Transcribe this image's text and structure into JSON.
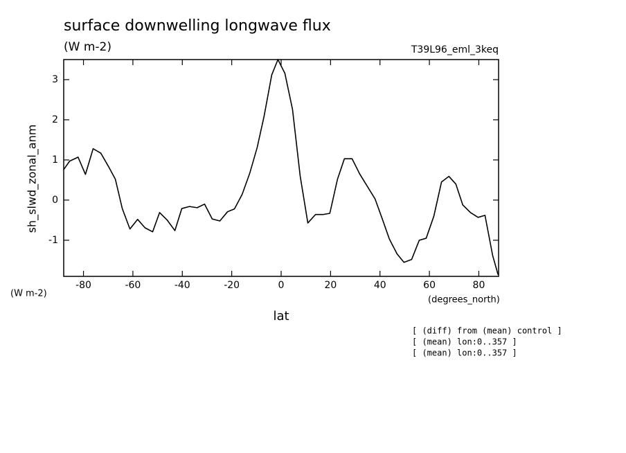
{
  "chart_data": {
    "type": "line",
    "title": "surface downwelling longwave flux",
    "subtitle": "(W m-2)",
    "dataset": "T39L96_eml_3keq",
    "y_label": "sh_slwd_zonal_anm",
    "y_units": "(W m-2)",
    "x_label": "lat",
    "x_units": "(degrees_north)",
    "notes": [
      "[ (diff) from (mean) control ]",
      "[ (mean) lon:0..357 ]",
      "[ (mean) lon:0..357 ]"
    ],
    "x": [
      -88.0,
      -85.6,
      -82.2,
      -79.2,
      -76.1,
      -73.0,
      -69.9,
      -67.1,
      -64.3,
      -61.2,
      -58.1,
      -55.1,
      -52.0,
      -49.2,
      -46.1,
      -43.0,
      -40.2,
      -37.1,
      -34.0,
      -31.0,
      -27.9,
      -24.8,
      -21.7,
      -18.9,
      -15.8,
      -12.7,
      -9.7,
      -6.9,
      -3.8,
      -1.3,
      1.5,
      4.6,
      7.7,
      10.8,
      13.9,
      16.9,
      19.7,
      22.8,
      25.6,
      28.7,
      31.8,
      34.9,
      38.0,
      41.0,
      43.8,
      46.9,
      49.7,
      52.8,
      55.9,
      58.7,
      61.8,
      64.9,
      67.9,
      70.7,
      73.5,
      76.6,
      79.7,
      82.5,
      85.6,
      87.8
    ],
    "series": [
      {
        "name": "sh_slwd_zonal_anm",
        "color": "#000000",
        "values": [
          0.76,
          0.97,
          1.07,
          0.64,
          1.28,
          1.17,
          0.84,
          0.52,
          -0.21,
          -0.72,
          -0.48,
          -0.69,
          -0.79,
          -0.31,
          -0.5,
          -0.76,
          -0.21,
          -0.16,
          -0.19,
          -0.1,
          -0.47,
          -0.52,
          -0.29,
          -0.22,
          0.14,
          0.67,
          1.31,
          2.09,
          3.12,
          3.5,
          3.16,
          2.26,
          0.6,
          -0.57,
          -0.36,
          -0.36,
          -0.33,
          0.52,
          1.03,
          1.03,
          0.65,
          0.34,
          0.03,
          -0.48,
          -0.97,
          -1.34,
          -1.55,
          -1.48,
          -1.0,
          -0.95,
          -0.4,
          0.45,
          0.59,
          0.4,
          -0.12,
          -0.31,
          -0.43,
          -0.38,
          -1.38,
          -1.86
        ]
      }
    ],
    "xlim": [
      -88,
      88
    ],
    "xticks": [
      -80,
      -60,
      -40,
      -20,
      0,
      20,
      40,
      60,
      80
    ],
    "ylim": [
      -1.9,
      3.5
    ],
    "yticks": [
      -1,
      0,
      1,
      2,
      3
    ]
  }
}
